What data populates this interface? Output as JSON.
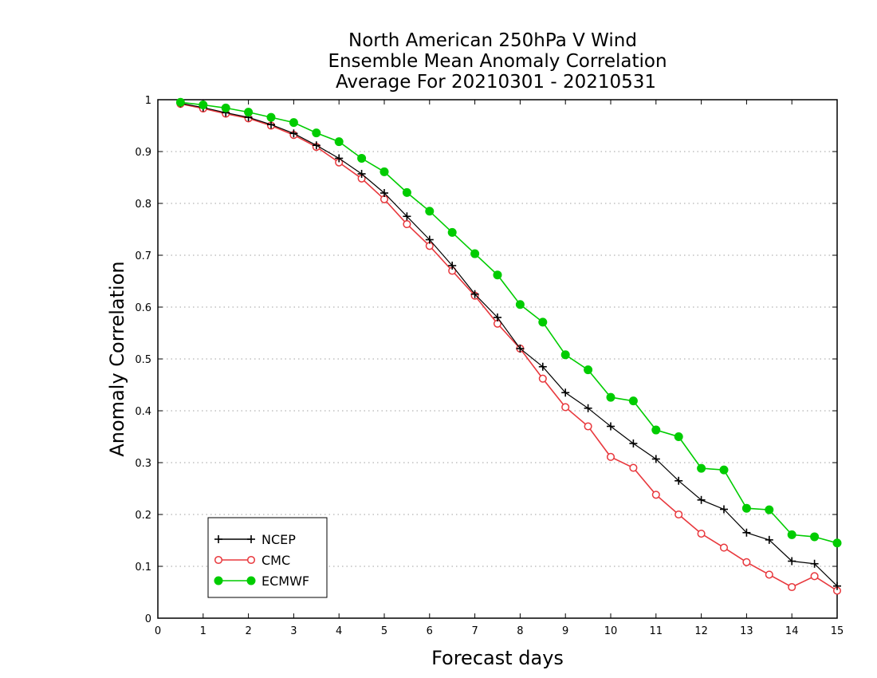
{
  "chart_data": {
    "type": "line",
    "title": [
      "North American 250hPa V Wind",
      "Ensemble Mean Anomaly Correlation",
      "Average For 20210301 - 20210531"
    ],
    "xlabel": "Forecast days",
    "ylabel": "Anomaly Correlation",
    "xlim": [
      0,
      15
    ],
    "ylim": [
      0,
      1
    ],
    "xticks": [
      "0",
      "1",
      "2",
      "3",
      "4",
      "5",
      "6",
      "7",
      "8",
      "9",
      "10",
      "11",
      "12",
      "13",
      "14",
      "15"
    ],
    "yticks": [
      "0",
      "0.1",
      "0.2",
      "0.3",
      "0.4",
      "0.5",
      "0.6",
      "0.7",
      "0.8",
      "0.9",
      "1"
    ],
    "grid": "horizontal dotted",
    "legend_position": "bottom-left",
    "x": [
      0.5,
      1,
      1.5,
      2,
      2.5,
      3,
      3.5,
      4,
      4.5,
      5,
      5.5,
      6,
      6.5,
      7,
      7.5,
      8,
      8.5,
      9,
      9.5,
      10,
      10.5,
      11,
      11.5,
      12,
      12.5,
      13,
      13.5,
      14,
      14.5,
      15
    ],
    "series": [
      {
        "name": "NCEP",
        "color": "#000000",
        "marker": "plus",
        "values": [
          0.993,
          0.985,
          0.975,
          0.966,
          0.952,
          0.935,
          0.912,
          0.887,
          0.857,
          0.82,
          0.775,
          0.73,
          0.68,
          0.625,
          0.58,
          0.52,
          0.485,
          0.435,
          0.405,
          0.37,
          0.337,
          0.307,
          0.265,
          0.228,
          0.21,
          0.165,
          0.151,
          0.11,
          0.105,
          0.062
        ]
      },
      {
        "name": "CMC",
        "color": "#e8383d",
        "marker": "open-circle",
        "values": [
          0.992,
          0.983,
          0.973,
          0.964,
          0.95,
          0.932,
          0.909,
          0.879,
          0.848,
          0.808,
          0.76,
          0.718,
          0.67,
          0.622,
          0.568,
          0.52,
          0.462,
          0.407,
          0.37,
          0.311,
          0.29,
          0.238,
          0.2,
          0.163,
          0.136,
          0.108,
          0.084,
          0.06,
          0.081,
          0.053
        ]
      },
      {
        "name": "ECMWF",
        "color": "#00cc00",
        "marker": "filled-circle",
        "values": [
          0.995,
          0.99,
          0.984,
          0.976,
          0.966,
          0.956,
          0.936,
          0.919,
          0.887,
          0.861,
          0.821,
          0.785,
          0.744,
          0.703,
          0.662,
          0.605,
          0.571,
          0.508,
          0.479,
          0.426,
          0.419,
          0.363,
          0.35,
          0.289,
          0.286,
          0.212,
          0.209,
          0.161,
          0.157,
          0.145
        ]
      }
    ]
  }
}
